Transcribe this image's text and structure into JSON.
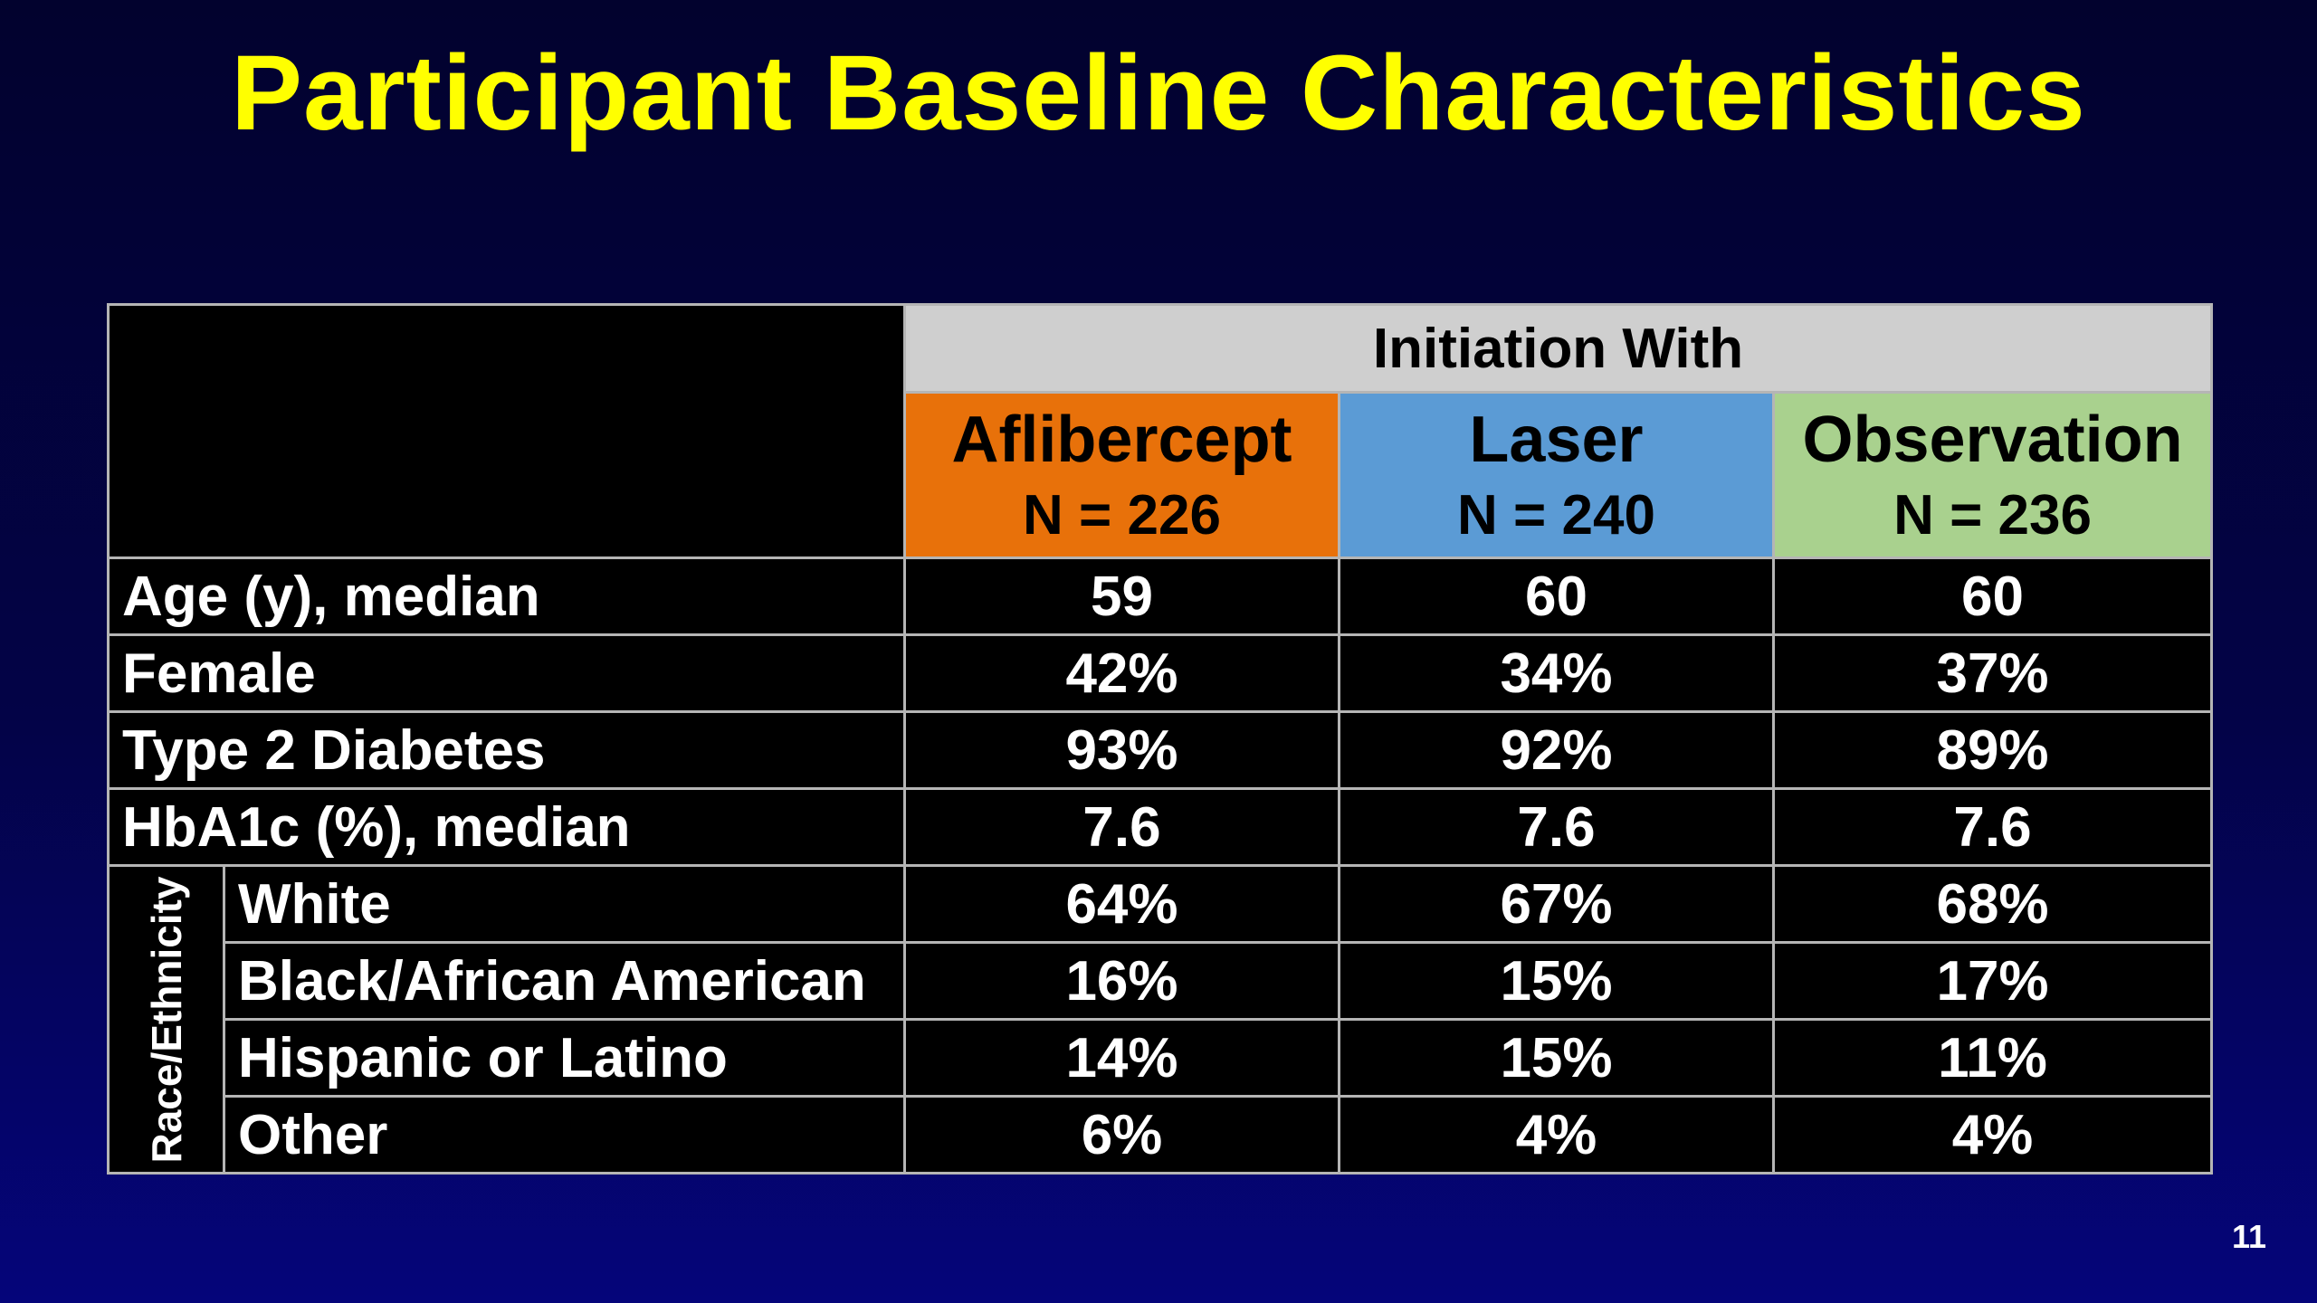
{
  "slide": {
    "title": "Participant Baseline Characteristics",
    "number": "11"
  },
  "table": {
    "group_header": "Initiation With",
    "arms": [
      {
        "name": "Aflibercept",
        "n": "N = 226",
        "color": "#e8710a"
      },
      {
        "name": "Laser",
        "n": "N = 240",
        "color": "#5b9bd5"
      },
      {
        "name": "Observation",
        "n": "N = 236",
        "color": "#a9d18e"
      }
    ],
    "rows": [
      {
        "label": "Age (y), median",
        "values": [
          "59",
          "60",
          "60"
        ]
      },
      {
        "label": "Female",
        "values": [
          "42%",
          "34%",
          "37%"
        ]
      },
      {
        "label": "Type 2 Diabetes",
        "values": [
          "93%",
          "92%",
          "89%"
        ]
      },
      {
        "label": "HbA1c (%), median",
        "values": [
          "7.6",
          "7.6",
          "7.6"
        ]
      }
    ],
    "race_group_label": "Race/Ethnicity",
    "race_rows": [
      {
        "label": "White",
        "values": [
          "64%",
          "67%",
          "68%"
        ]
      },
      {
        "label": "Black/African American",
        "values": [
          "16%",
          "15%",
          "17%"
        ]
      },
      {
        "label": "Hispanic or Latino",
        "values": [
          "14%",
          "15%",
          "11%"
        ]
      },
      {
        "label": "Other",
        "values": [
          "6%",
          "4%",
          "4%"
        ]
      }
    ]
  }
}
